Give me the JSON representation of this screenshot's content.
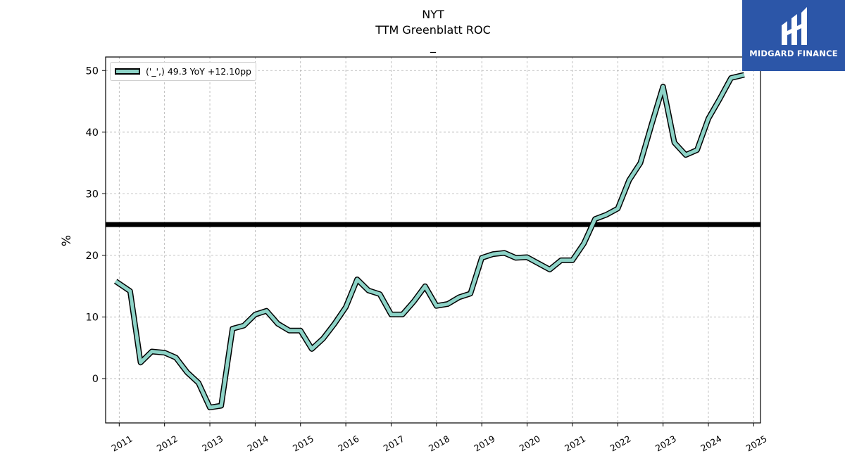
{
  "chart_data": {
    "type": "line",
    "title": "NYT",
    "subtitle": "TTM Greenblatt ROC",
    "subtitle2": "_",
    "ylabel": "%",
    "ylim": [
      -7.2,
      52.2
    ],
    "xlim": [
      2010.7,
      2025.15
    ],
    "x_ticks": [
      2011,
      2012,
      2013,
      2014,
      2015,
      2016,
      2017,
      2018,
      2019,
      2020,
      2021,
      2022,
      2023,
      2024,
      2025
    ],
    "x_tick_labels": [
      "2011",
      "2012",
      "2013",
      "2014",
      "2015",
      "2016",
      "2017",
      "2018",
      "2019",
      "2020",
      "2021",
      "2022",
      "2023",
      "2024",
      "2025"
    ],
    "y_ticks": [
      0,
      10,
      20,
      30,
      40,
      50
    ],
    "y_tick_labels": [
      "0",
      "10",
      "20",
      "30",
      "40",
      "50"
    ],
    "grid": true,
    "legend_placement": "upper-left",
    "reference_line": 25,
    "series": [
      {
        "name": "('_',) 49.3 YoY +12.10pp",
        "color": "#8dd3c7",
        "edge_color": "#000000",
        "x": [
          2010.92,
          2011.24,
          2011.47,
          2011.72,
          2012.0,
          2012.25,
          2012.5,
          2012.75,
          2013.0,
          2013.25,
          2013.5,
          2013.75,
          2014.0,
          2014.25,
          2014.5,
          2014.75,
          2015.0,
          2015.25,
          2015.5,
          2015.75,
          2016.0,
          2016.25,
          2016.5,
          2016.75,
          2017.0,
          2017.25,
          2017.5,
          2017.75,
          2018.0,
          2018.25,
          2018.5,
          2018.75,
          2019.0,
          2019.25,
          2019.5,
          2019.75,
          2020.0,
          2020.25,
          2020.5,
          2020.75,
          2021.0,
          2021.25,
          2021.5,
          2021.75,
          2022.0,
          2022.25,
          2022.5,
          2022.75,
          2023.0,
          2023.25,
          2023.5,
          2023.75,
          2024.0,
          2024.25,
          2024.5,
          2024.79
        ],
        "values": [
          15.8,
          14.2,
          2.6,
          4.4,
          4.2,
          3.4,
          1.0,
          -0.7,
          -4.7,
          -4.4,
          8.1,
          8.6,
          10.4,
          11.0,
          8.9,
          7.8,
          7.8,
          4.8,
          6.5,
          8.9,
          11.6,
          16.1,
          14.3,
          13.7,
          10.4,
          10.4,
          12.5,
          15.0,
          11.8,
          12.1,
          13.2,
          13.8,
          19.6,
          20.2,
          20.4,
          19.6,
          19.7,
          18.7,
          17.7,
          19.2,
          19.2,
          21.9,
          25.9,
          26.6,
          27.6,
          32.2,
          35.0,
          41.3,
          47.4,
          38.3,
          36.3,
          37.1,
          42.2,
          45.4,
          48.8,
          49.3
        ]
      }
    ]
  },
  "logo": {
    "text": "MIDGARD FINANCE"
  }
}
